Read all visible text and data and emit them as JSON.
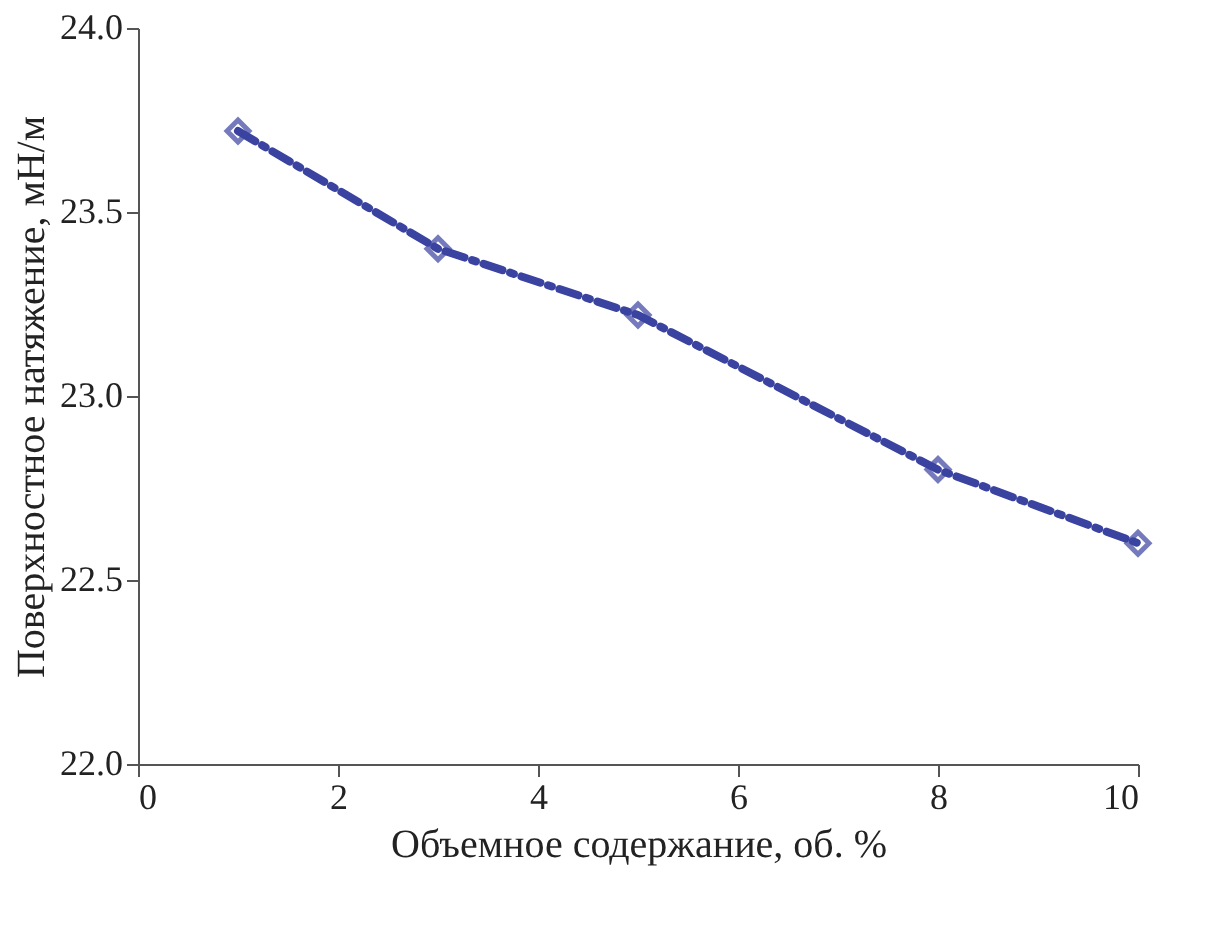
{
  "chart_data": {
    "type": "line",
    "xlabel": "Объемное содержание, об. %",
    "ylabel": "Поверхностное натяжение, мН/м",
    "x": [
      1,
      3,
      5,
      8,
      10
    ],
    "series": [
      {
        "color": "#3a43a0",
        "values": [
          23.72,
          23.4,
          23.22,
          22.8,
          22.6
        ]
      }
    ],
    "xlim": [
      0,
      10
    ],
    "xticks": [
      0,
      2,
      4,
      6,
      8,
      10
    ],
    "ylim": [
      22.0,
      24.0
    ],
    "yticks": [
      {
        "value": 22,
        "label": "22.0"
      },
      {
        "value": 22.5,
        "label": "22.5"
      },
      {
        "value": 23,
        "label": "23.0"
      },
      {
        "value": 23.5,
        "label": "23.5"
      },
      {
        "value": 24,
        "label": "24.0"
      }
    ],
    "marker": "diamond",
    "line_style": "dashed",
    "grid": false
  }
}
